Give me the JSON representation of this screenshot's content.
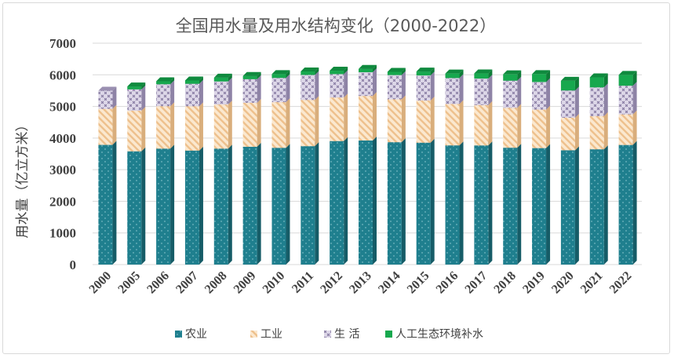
{
  "chart_data": {
    "type": "bar",
    "stacked": true,
    "title": "全国用水量及用水结构变化（2000-2022）",
    "ylabel": "用水量（亿立方米）",
    "xlabel": "",
    "ylim": [
      0,
      7000
    ],
    "yticks": [
      "0",
      "1000",
      "2000",
      "3000",
      "4000",
      "5000",
      "6000",
      "7000"
    ],
    "categories": [
      "2000",
      "2005",
      "2006",
      "2007",
      "2008",
      "2009",
      "2010",
      "2011",
      "2012",
      "2013",
      "2014",
      "2015",
      "2016",
      "2017",
      "2018",
      "2019",
      "2020",
      "2021",
      "2022"
    ],
    "series": [
      {
        "name": "农业",
        "color": "#1f7f8e",
        "values": [
          3784,
          3580,
          3664,
          3602,
          3664,
          3723,
          3689,
          3744,
          3903,
          3922,
          3869,
          3852,
          3768,
          3766,
          3693,
          3682,
          3612,
          3644,
          3781
        ]
      },
      {
        "name": "工业",
        "color": "#f5d5a8",
        "values": [
          1139,
          1285,
          1344,
          1404,
          1397,
          1391,
          1447,
          1462,
          1380,
          1410,
          1356,
          1335,
          1308,
          1277,
          1262,
          1218,
          1030,
          1050,
          968
        ]
      },
      {
        "name": "生 活",
        "color": "#b9b0c9",
        "values": [
          575,
          675,
          694,
          710,
          729,
          748,
          766,
          790,
          739,
          750,
          767,
          793,
          822,
          838,
          860,
          872,
          863,
          909,
          906
        ]
      },
      {
        "name": "人工生态环境补水",
        "color": "#17a84e",
        "values": [
          0,
          93,
          93,
          105,
          120,
          103,
          120,
          111,
          108,
          105,
          103,
          123,
          143,
          162,
          200,
          250,
          307,
          317,
          344
        ]
      }
    ],
    "legend_position": "bottom"
  }
}
